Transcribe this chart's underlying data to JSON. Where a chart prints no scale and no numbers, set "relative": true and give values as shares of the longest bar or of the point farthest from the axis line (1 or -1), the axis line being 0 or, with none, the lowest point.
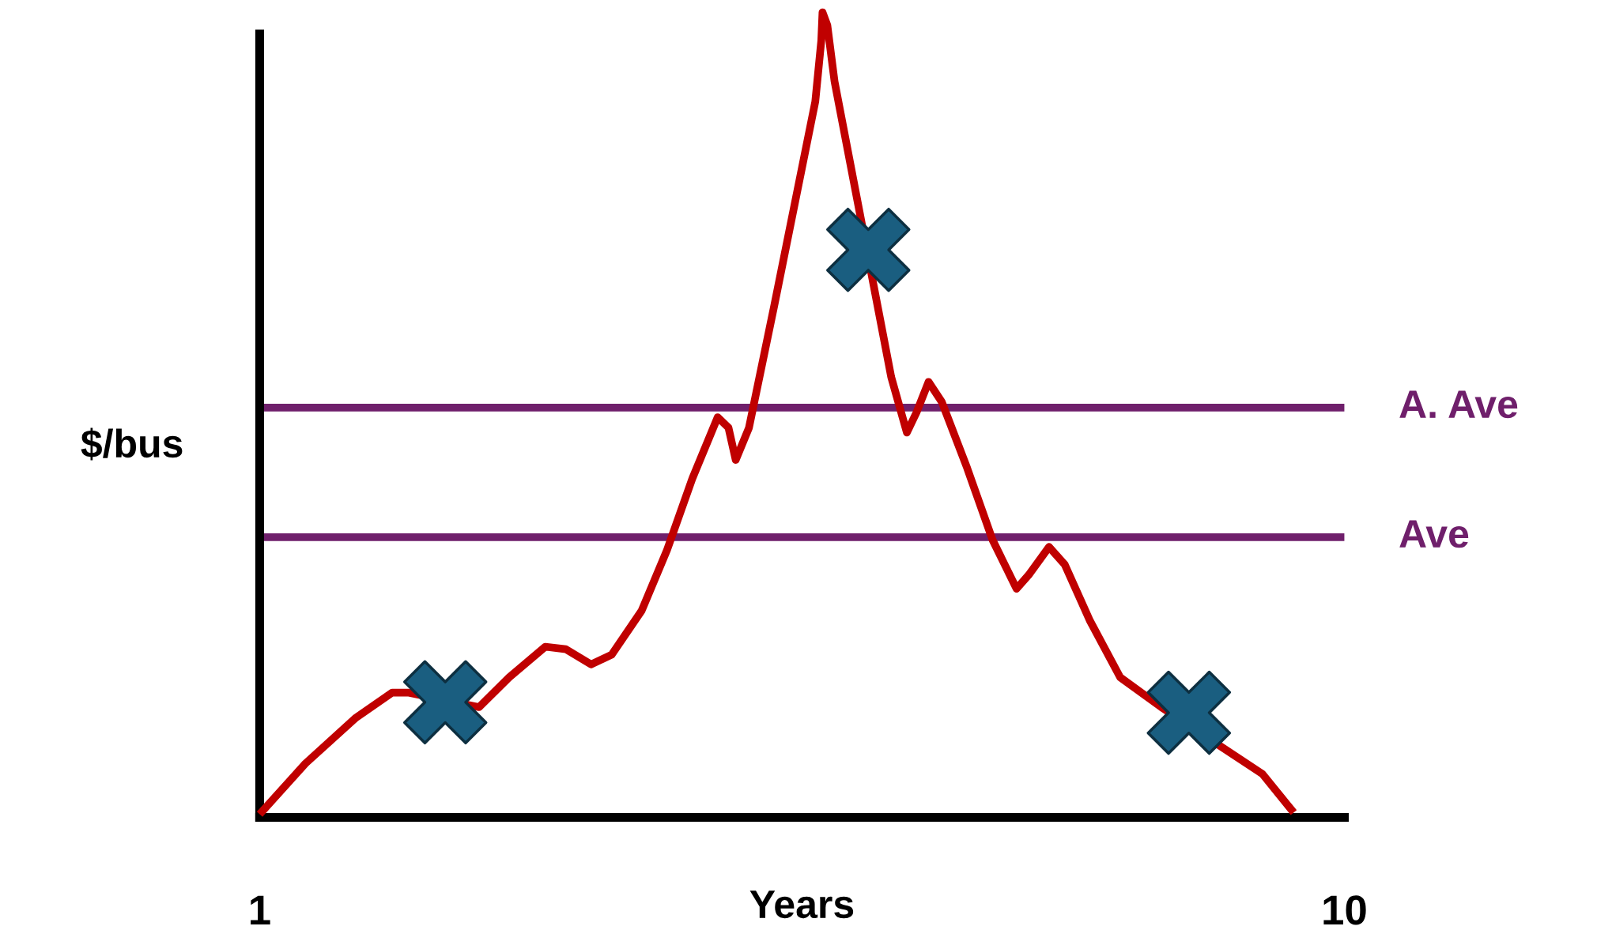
{
  "chart_data": {
    "type": "line",
    "relative": true,
    "xlabel": "Years",
    "ylabel": "$/bus",
    "xlim": [
      1,
      10
    ],
    "xticks": [
      1,
      10
    ],
    "grid": false,
    "legend": false,
    "tick_labels": "x",
    "series": [
      {
        "color": "#c00000",
        "marker": "none",
        "line_style": "solid",
        "x": [
          1.0,
          1.38,
          1.8,
          2.1,
          2.23,
          2.82,
          3.07,
          3.37,
          3.54,
          3.75,
          3.92,
          4.17,
          4.38,
          4.59,
          4.8,
          4.89,
          4.95,
          5.06,
          5.27,
          5.61,
          5.66,
          5.67,
          5.71,
          5.77,
          6.24,
          6.37,
          6.45,
          6.55,
          6.66,
          6.87,
          7.08,
          7.28,
          7.38,
          7.55,
          7.68,
          7.89,
          8.14,
          8.48,
          9.32,
          9.58
        ],
        "values": [
          0.004,
          0.067,
          0.124,
          0.155,
          0.155,
          0.137,
          0.174,
          0.212,
          0.209,
          0.19,
          0.202,
          0.257,
          0.332,
          0.421,
          0.497,
          0.484,
          0.444,
          0.484,
          0.636,
          0.889,
          0.965,
          1.0,
          0.984,
          0.914,
          0.547,
          0.478,
          0.503,
          0.541,
          0.516,
          0.434,
          0.345,
          0.284,
          0.301,
          0.336,
          0.314,
          0.244,
          0.174,
          0.137,
          0.054,
          0.006
        ]
      },
      {
        "type": "scatter",
        "color": "#1a5e80",
        "marker": "cross",
        "x": [
          2.54,
          6.05,
          8.71
        ],
        "values": [
          0.143,
          0.705,
          0.13
        ]
      }
    ],
    "ref_lines": [
      {
        "axis": "y",
        "value": 0.509,
        "label": "A. Ave",
        "color": "#6f1f6b",
        "line_style": "solid"
      },
      {
        "axis": "y",
        "value": 0.348,
        "label": "Ave",
        "color": "#6f1f6b",
        "line_style": "solid"
      }
    ]
  }
}
